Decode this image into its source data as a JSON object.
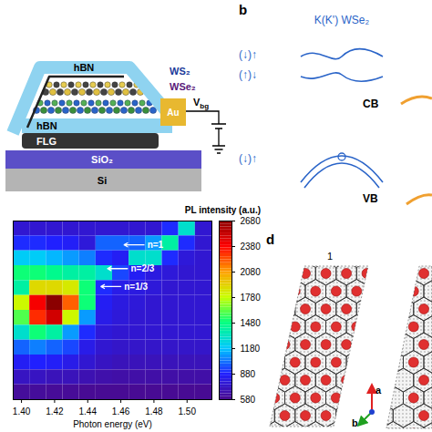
{
  "device": {
    "layers": [
      "hBN",
      "WS₂",
      "WSe₂",
      "hBN",
      "FLG",
      "SiO₂",
      "Si"
    ],
    "contact": "Au",
    "gate": {
      "label": "V",
      "subscript": "bg"
    }
  },
  "band_diagram": {
    "label": "b",
    "title": "K(K') WSe₂",
    "spin_labels": [
      "(↓)↑",
      "(↑)↓",
      "(↓)↑"
    ],
    "bands": [
      "CB",
      "VB"
    ]
  },
  "chart_data": {
    "type": "heatmap",
    "x_label": "Photon energy (eV)",
    "x": [
      1.4,
      1.41,
      1.42,
      1.43,
      1.44,
      1.45,
      1.46,
      1.47,
      1.48,
      1.49,
      1.5,
      1.51
    ],
    "xlim": [
      1.395,
      1.515
    ],
    "xticks": [
      {
        "value": 1.4,
        "label": "1.40"
      },
      {
        "value": 1.42,
        "label": "1.42"
      },
      {
        "value": 1.44,
        "label": "1.44"
      },
      {
        "value": 1.46,
        "label": "1.46"
      },
      {
        "value": 1.48,
        "label": "1.48"
      },
      {
        "value": 1.5,
        "label": "1.50"
      }
    ],
    "tick_labels": "x",
    "cells": [
      [
        760,
        760,
        760,
        760,
        760,
        760,
        760,
        760,
        760,
        900,
        1300,
        760
      ],
      [
        900,
        900,
        880,
        860,
        780,
        1000,
        1000,
        1000,
        1100,
        1400,
        900,
        760
      ],
      [
        1200,
        1200,
        1150,
        1100,
        1050,
        900,
        850,
        1300,
        1300,
        900,
        780,
        760
      ],
      [
        1500,
        1500,
        1450,
        1400,
        1400,
        1300,
        950,
        850,
        800,
        780,
        760,
        760
      ],
      [
        1400,
        1900,
        1900,
        1850,
        1500,
        900,
        820,
        800,
        780,
        760,
        760,
        760
      ],
      [
        1800,
        2400,
        2680,
        2200,
        1500,
        850,
        800,
        780,
        760,
        760,
        760,
        760
      ],
      [
        1600,
        2300,
        2500,
        1800,
        1100,
        820,
        780,
        760,
        760,
        760,
        760,
        760
      ],
      [
        1300,
        1500,
        1400,
        1100,
        900,
        780,
        760,
        760,
        760,
        760,
        760,
        760
      ],
      [
        1000,
        1050,
        1000,
        950,
        820,
        760,
        740,
        740,
        740,
        740,
        740,
        740
      ],
      [
        850,
        880,
        860,
        820,
        760,
        720,
        700,
        700,
        700,
        700,
        700,
        700
      ],
      [
        720,
        720,
        700,
        700,
        680,
        660,
        650,
        650,
        650,
        650,
        650,
        650
      ],
      [
        620,
        620,
        610,
        610,
        600,
        600,
        600,
        600,
        600,
        600,
        600,
        600
      ]
    ],
    "colorbar": {
      "label": "PL intensity (a.u.)",
      "range": [
        580,
        2680
      ],
      "ticks": [
        580,
        880,
        1180,
        1480,
        1780,
        2080,
        2380,
        2680
      ]
    },
    "annotations": [
      {
        "text": "n=1",
        "x": 1.462
      },
      {
        "text": "n=2/3",
        "x": 1.452
      },
      {
        "text": "n=1/3",
        "x": 1.448
      }
    ]
  },
  "lattice": {
    "label": "d",
    "panel_labels": [
      "1"
    ],
    "axes": [
      "a",
      "b"
    ]
  }
}
